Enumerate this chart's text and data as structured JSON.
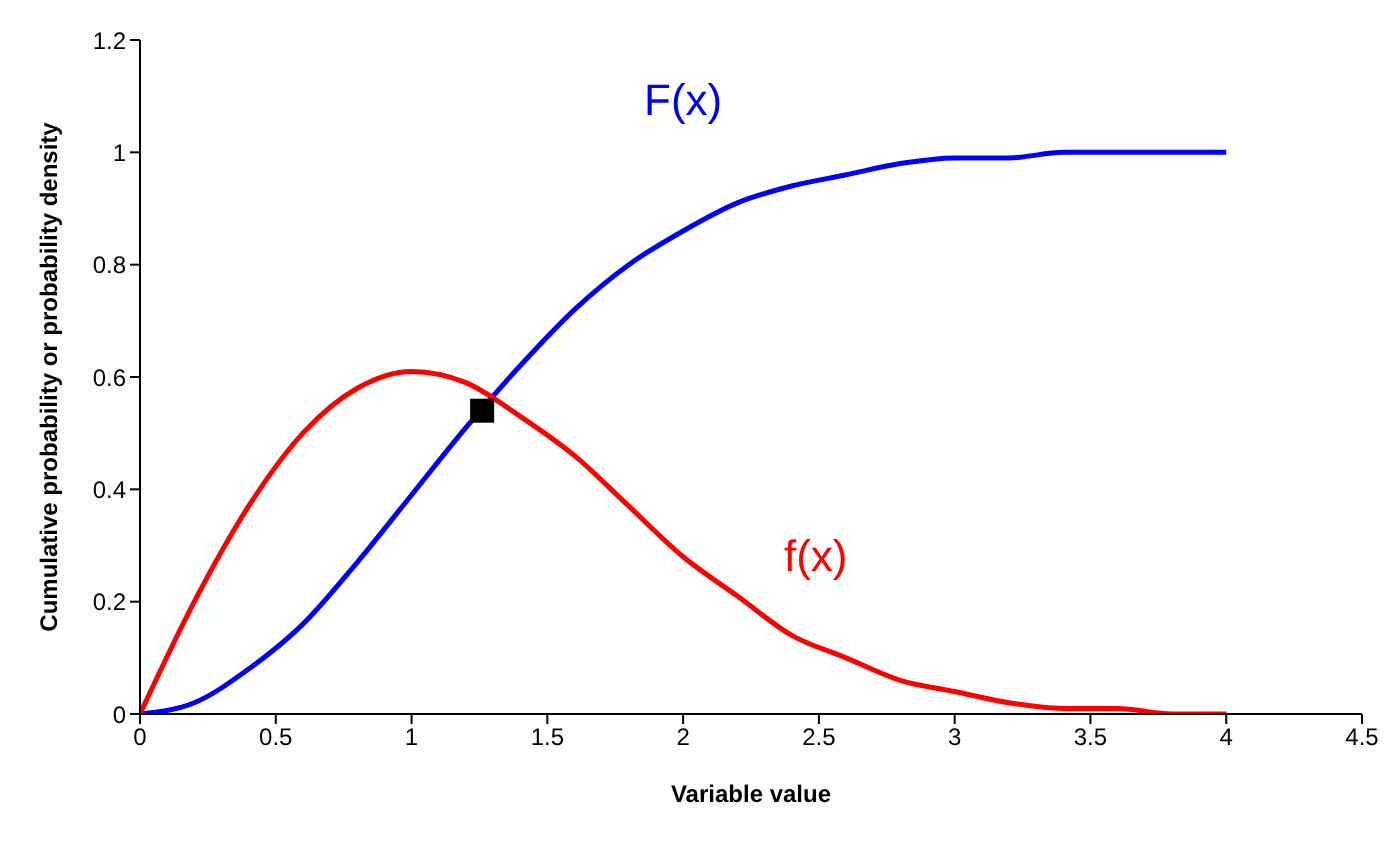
{
  "chart_data": {
    "type": "line",
    "xlabel": "Variable value",
    "ylabel": "Cumulative probability or probability density",
    "x": [
      0,
      0.2,
      0.4,
      0.6,
      0.8,
      1,
      1.2,
      1.4,
      1.6,
      1.8,
      2,
      2.2,
      2.4,
      2.6,
      2.8,
      3,
      3.2,
      3.4,
      3.6,
      3.8,
      4
    ],
    "series": [
      {
        "name": "F(x)",
        "color": "#0000ff",
        "values": [
          0,
          0.02,
          0.08,
          0.16,
          0.27,
          0.39,
          0.51,
          0.62,
          0.72,
          0.8,
          0.86,
          0.91,
          0.94,
          0.96,
          0.98,
          0.99,
          0.99,
          1,
          1,
          1,
          1
        ]
      },
      {
        "name": "f(x)",
        "color": "#ff0000",
        "values": [
          0,
          0.2,
          0.37,
          0.5,
          0.58,
          0.61,
          0.59,
          0.53,
          0.46,
          0.37,
          0.28,
          0.21,
          0.14,
          0.1,
          0.06,
          0.04,
          0.02,
          0.01,
          0.01,
          0,
          0
        ]
      },
      {
        "type": "scatter",
        "marker": "square",
        "color": "#000000",
        "x": [
          1.26
        ],
        "values": [
          0.54
        ]
      }
    ],
    "xlim": [
      0,
      4.5
    ],
    "xticks": [
      0,
      0.5,
      1,
      1.5,
      2,
      2.5,
      3,
      3.5,
      4,
      4.5
    ],
    "ylim": [
      0,
      1.2
    ],
    "yticks": [
      0,
      0.2,
      0.4,
      0.6,
      0.8,
      1,
      1.2
    ],
    "grid": false,
    "marker": "none",
    "line_style": "solid"
  }
}
